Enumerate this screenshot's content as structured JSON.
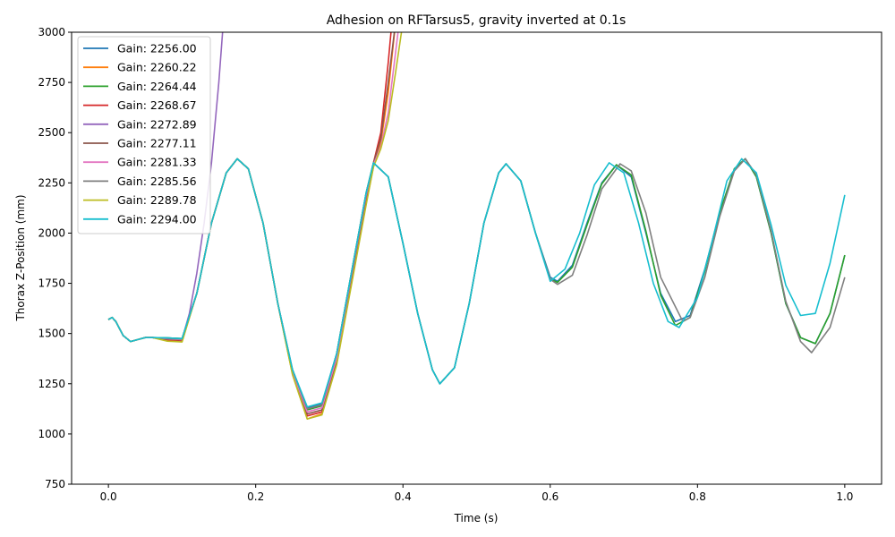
{
  "chart_data": {
    "type": "line",
    "title": "Adhesion on RFTarsus5, gravity inverted at 0.1s",
    "xlabel": "Time (s)",
    "ylabel": "Thorax Z-Position (mm)",
    "xlim": [
      -0.05,
      1.05
    ],
    "ylim": [
      750,
      3000
    ],
    "xticks": [
      0.0,
      0.2,
      0.4,
      0.6,
      0.8,
      1.0
    ],
    "xtick_labels": [
      "0.0",
      "0.2",
      "0.4",
      "0.6",
      "0.8",
      "1.0"
    ],
    "yticks": [
      750,
      1000,
      1250,
      1500,
      1750,
      2000,
      2250,
      2500,
      2750,
      3000
    ],
    "ytick_labels": [
      "750",
      "1000",
      "1250",
      "1500",
      "1750",
      "2000",
      "2250",
      "2500",
      "2750",
      "3000"
    ],
    "grid": false,
    "legend_position": "upper-left",
    "series": [
      {
        "name": "Gain: 2256.00",
        "color": "#1f77b4",
        "x": [
          0.0,
          0.005,
          0.01,
          0.02,
          0.03,
          0.04,
          0.05,
          0.06,
          0.08,
          0.1,
          0.12,
          0.14,
          0.16,
          0.175,
          0.19,
          0.21,
          0.23,
          0.25,
          0.27,
          0.29,
          0.31,
          0.33,
          0.35,
          0.36,
          0.38,
          0.4,
          0.42,
          0.44,
          0.45,
          0.47,
          0.49,
          0.51,
          0.53,
          0.54,
          0.56,
          0.58,
          0.6,
          0.61,
          0.63,
          0.65,
          0.67,
          0.69,
          0.71,
          0.73,
          0.75,
          0.77,
          0.79,
          0.81,
          0.83,
          0.85,
          0.865,
          0.88,
          0.9,
          0.92,
          0.94,
          0.96,
          0.98,
          1.0
        ],
        "y": [
          1570,
          1580,
          1560,
          1490,
          1460,
          1470,
          1480,
          1480,
          1478,
          1475,
          1700,
          2050,
          2300,
          2370,
          2320,
          2050,
          1650,
          1320,
          1130,
          1150,
          1400,
          1800,
          2200,
          2350,
          2280,
          1950,
          1600,
          1320,
          1250,
          1330,
          1650,
          2050,
          2300,
          2345,
          2260,
          2000,
          1780,
          1760,
          1840,
          2050,
          2250,
          2340,
          2280,
          2000,
          1700,
          1560,
          1590,
          1820,
          2100,
          2320,
          2370,
          2280,
          2000,
          1650,
          1480,
          1450,
          1600,
          1890
        ]
      },
      {
        "name": "Gain: 2260.22",
        "color": "#ff7f0e",
        "x": [
          0.0,
          0.005,
          0.01,
          0.02,
          0.03,
          0.04,
          0.05,
          0.06,
          0.08,
          0.1,
          0.12,
          0.14,
          0.16,
          0.175,
          0.19,
          0.21,
          0.23,
          0.25,
          0.27,
          0.29,
          0.31,
          0.33,
          0.35,
          0.36,
          0.37,
          0.38,
          0.39
        ],
        "y": [
          1570,
          1580,
          1560,
          1490,
          1460,
          1470,
          1480,
          1480,
          1465,
          1460,
          1700,
          2050,
          2300,
          2370,
          2320,
          2050,
          1650,
          1300,
          1075,
          1100,
          1350,
          1750,
          2150,
          2330,
          2450,
          2700,
          3050
        ]
      },
      {
        "name": "Gain: 2264.44",
        "color": "#2ca02c",
        "x": [
          0.0,
          0.005,
          0.01,
          0.02,
          0.03,
          0.04,
          0.05,
          0.06,
          0.08,
          0.1,
          0.12,
          0.14,
          0.16,
          0.175,
          0.19,
          0.21,
          0.23,
          0.25,
          0.27,
          0.29,
          0.31,
          0.33,
          0.35,
          0.36,
          0.38,
          0.4,
          0.42,
          0.44,
          0.45,
          0.47,
          0.49,
          0.51,
          0.53,
          0.54,
          0.56,
          0.58,
          0.6,
          0.61,
          0.63,
          0.65,
          0.67,
          0.69,
          0.71,
          0.73,
          0.75,
          0.77,
          0.79,
          0.81,
          0.83,
          0.85,
          0.865,
          0.88,
          0.9,
          0.92,
          0.94,
          0.96,
          0.98,
          1.0
        ],
        "y": [
          1570,
          1580,
          1560,
          1490,
          1460,
          1470,
          1480,
          1480,
          1478,
          1475,
          1700,
          2050,
          2300,
          2370,
          2320,
          2050,
          1650,
          1310,
          1120,
          1140,
          1400,
          1800,
          2200,
          2350,
          2280,
          1950,
          1600,
          1320,
          1250,
          1330,
          1650,
          2050,
          2300,
          2345,
          2260,
          2000,
          1770,
          1755,
          1830,
          2040,
          2245,
          2340,
          2290,
          2010,
          1690,
          1540,
          1580,
          1810,
          2100,
          2320,
          2370,
          2280,
          2000,
          1650,
          1480,
          1450,
          1600,
          1890
        ]
      },
      {
        "name": "Gain: 2268.67",
        "color": "#d62728",
        "x": [
          0.0,
          0.005,
          0.01,
          0.02,
          0.03,
          0.04,
          0.05,
          0.06,
          0.08,
          0.1,
          0.12,
          0.14,
          0.16,
          0.175,
          0.19,
          0.21,
          0.23,
          0.25,
          0.27,
          0.29,
          0.31,
          0.33,
          0.35,
          0.36,
          0.37,
          0.38,
          0.385
        ],
        "y": [
          1570,
          1580,
          1560,
          1490,
          1460,
          1470,
          1480,
          1480,
          1470,
          1465,
          1700,
          2050,
          2300,
          2370,
          2320,
          2050,
          1650,
          1300,
          1090,
          1110,
          1360,
          1770,
          2170,
          2350,
          2500,
          2850,
          3050
        ]
      },
      {
        "name": "Gain: 2272.89",
        "color": "#9467bd",
        "x": [
          0.0,
          0.005,
          0.01,
          0.02,
          0.03,
          0.04,
          0.05,
          0.06,
          0.08,
          0.1,
          0.11,
          0.12,
          0.13,
          0.14,
          0.15,
          0.155,
          0.16
        ],
        "y": [
          1570,
          1580,
          1560,
          1490,
          1460,
          1470,
          1480,
          1480,
          1475,
          1470,
          1600,
          1800,
          2050,
          2350,
          2750,
          3000,
          3100
        ]
      },
      {
        "name": "Gain: 2277.11",
        "color": "#8c564b",
        "x": [
          0.0,
          0.005,
          0.01,
          0.02,
          0.03,
          0.04,
          0.05,
          0.06,
          0.08,
          0.1,
          0.12,
          0.14,
          0.16,
          0.175,
          0.19,
          0.21,
          0.23,
          0.25,
          0.27,
          0.29,
          0.31,
          0.33,
          0.35,
          0.36,
          0.37,
          0.38,
          0.39
        ],
        "y": [
          1570,
          1580,
          1560,
          1490,
          1460,
          1470,
          1480,
          1480,
          1472,
          1468,
          1700,
          2050,
          2300,
          2370,
          2320,
          2050,
          1650,
          1305,
          1100,
          1120,
          1370,
          1780,
          2180,
          2350,
          2470,
          2750,
          3050
        ]
      },
      {
        "name": "Gain: 2281.33",
        "color": "#e377c2",
        "x": [
          0.0,
          0.005,
          0.01,
          0.02,
          0.03,
          0.04,
          0.05,
          0.06,
          0.08,
          0.1,
          0.12,
          0.14,
          0.16,
          0.175,
          0.19,
          0.21,
          0.23,
          0.25,
          0.27,
          0.29,
          0.31,
          0.33,
          0.35,
          0.36,
          0.37,
          0.38,
          0.39,
          0.395
        ],
        "y": [
          1570,
          1580,
          1560,
          1490,
          1460,
          1470,
          1480,
          1480,
          1474,
          1470,
          1700,
          2050,
          2300,
          2370,
          2320,
          2050,
          1650,
          1310,
          1110,
          1130,
          1380,
          1790,
          2190,
          2340,
          2430,
          2600,
          2900,
          3050
        ]
      },
      {
        "name": "Gain: 2285.56",
        "color": "#7f7f7f",
        "x": [
          0.0,
          0.005,
          0.01,
          0.02,
          0.03,
          0.04,
          0.05,
          0.06,
          0.08,
          0.1,
          0.12,
          0.14,
          0.16,
          0.175,
          0.19,
          0.21,
          0.23,
          0.25,
          0.27,
          0.29,
          0.31,
          0.33,
          0.35,
          0.36,
          0.38,
          0.4,
          0.42,
          0.44,
          0.45,
          0.47,
          0.49,
          0.51,
          0.53,
          0.54,
          0.56,
          0.58,
          0.6,
          0.61,
          0.63,
          0.65,
          0.67,
          0.695,
          0.71,
          0.73,
          0.75,
          0.78,
          0.79,
          0.81,
          0.83,
          0.85,
          0.865,
          0.88,
          0.9,
          0.92,
          0.94,
          0.955,
          0.98,
          1.0
        ],
        "y": [
          1570,
          1580,
          1560,
          1490,
          1460,
          1470,
          1480,
          1480,
          1476,
          1472,
          1700,
          2050,
          2300,
          2370,
          2320,
          2050,
          1650,
          1320,
          1125,
          1145,
          1400,
          1800,
          2200,
          2350,
          2280,
          1950,
          1600,
          1320,
          1250,
          1330,
          1650,
          2050,
          2300,
          2345,
          2260,
          2000,
          1770,
          1745,
          1790,
          1990,
          2220,
          2345,
          2310,
          2100,
          1780,
          1560,
          1580,
          1780,
          2080,
          2310,
          2370,
          2290,
          2010,
          1660,
          1460,
          1405,
          1530,
          1780
        ]
      },
      {
        "name": "Gain: 2289.78",
        "color": "#bcbd22",
        "x": [
          0.0,
          0.005,
          0.01,
          0.02,
          0.03,
          0.04,
          0.05,
          0.06,
          0.08,
          0.1,
          0.12,
          0.14,
          0.16,
          0.175,
          0.19,
          0.21,
          0.23,
          0.25,
          0.27,
          0.29,
          0.31,
          0.33,
          0.35,
          0.36,
          0.37,
          0.38,
          0.39,
          0.4
        ],
        "y": [
          1570,
          1580,
          1560,
          1490,
          1460,
          1470,
          1480,
          1480,
          1462,
          1458,
          1700,
          2050,
          2300,
          2370,
          2320,
          2050,
          1650,
          1295,
          1075,
          1095,
          1345,
          1740,
          2140,
          2330,
          2420,
          2560,
          2800,
          3050
        ]
      },
      {
        "name": "Gain: 2294.00",
        "color": "#17becf",
        "x": [
          0.0,
          0.005,
          0.01,
          0.02,
          0.03,
          0.04,
          0.05,
          0.06,
          0.08,
          0.1,
          0.12,
          0.14,
          0.16,
          0.175,
          0.19,
          0.21,
          0.23,
          0.25,
          0.27,
          0.29,
          0.31,
          0.33,
          0.35,
          0.36,
          0.38,
          0.4,
          0.42,
          0.44,
          0.45,
          0.47,
          0.49,
          0.51,
          0.53,
          0.54,
          0.56,
          0.58,
          0.6,
          0.62,
          0.64,
          0.66,
          0.68,
          0.7,
          0.72,
          0.74,
          0.76,
          0.775,
          0.8,
          0.82,
          0.84,
          0.86,
          0.88,
          0.9,
          0.92,
          0.94,
          0.96,
          0.98,
          1.0
        ],
        "y": [
          1570,
          1580,
          1560,
          1490,
          1460,
          1470,
          1480,
          1480,
          1478,
          1475,
          1700,
          2050,
          2300,
          2370,
          2320,
          2050,
          1650,
          1320,
          1135,
          1155,
          1400,
          1800,
          2200,
          2350,
          2280,
          1950,
          1600,
          1320,
          1250,
          1330,
          1650,
          2050,
          2300,
          2345,
          2260,
          2000,
          1760,
          1820,
          2000,
          2240,
          2350,
          2300,
          2050,
          1750,
          1560,
          1530,
          1680,
          1960,
          2260,
          2370,
          2300,
          2040,
          1740,
          1590,
          1600,
          1850,
          2190
        ]
      }
    ]
  }
}
